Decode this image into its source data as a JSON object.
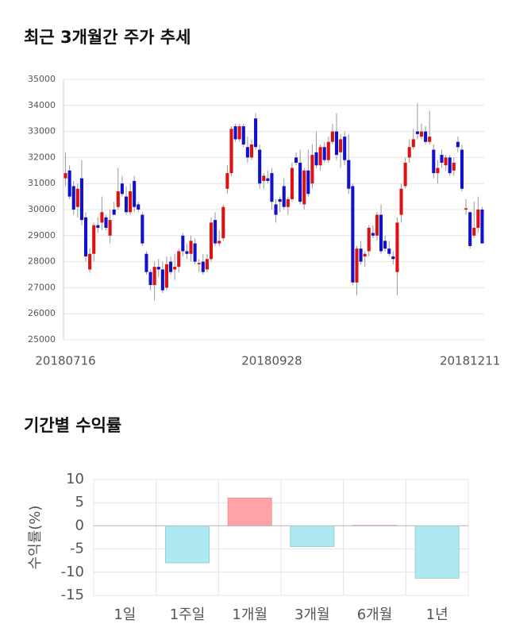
{
  "chart_data": [
    {
      "type": "candlestick",
      "title": "최근 3개월간 주가 추세",
      "up_color": "#dd1111",
      "down_color": "#1111cc",
      "ylim": [
        25000,
        35000
      ],
      "yticks": [
        25000,
        26000,
        27000,
        28000,
        29000,
        30000,
        31000,
        32000,
        33000,
        34000,
        35000
      ],
      "grid": true,
      "categories": [
        "20180716",
        null,
        null,
        null,
        null,
        null,
        null,
        null,
        null,
        null,
        null,
        null,
        null,
        null,
        null,
        null,
        null,
        null,
        null,
        null,
        null,
        null,
        null,
        null,
        null,
        null,
        null,
        null,
        null,
        null,
        null,
        null,
        null,
        null,
        null,
        null,
        null,
        null,
        null,
        null,
        null,
        null,
        null,
        null,
        null,
        null,
        null,
        null,
        null,
        null,
        null,
        "20180928",
        null,
        null,
        null,
        null,
        null,
        null,
        null,
        null,
        null,
        null,
        null,
        null,
        null,
        null,
        null,
        null,
        null,
        null,
        null,
        null,
        null,
        null,
        null,
        null,
        null,
        null,
        null,
        null,
        null,
        null,
        null,
        null,
        null,
        null,
        null,
        null,
        null,
        null,
        null,
        null,
        null,
        null,
        null,
        null,
        null,
        null,
        null,
        null,
        "20181211",
        null,
        null,
        null
      ],
      "ohlc": [
        [
          31200,
          32200,
          30900,
          31400
        ],
        [
          31500,
          31700,
          30400,
          30500
        ],
        [
          30900,
          31100,
          29800,
          30000
        ],
        [
          30100,
          31000,
          29700,
          30800
        ],
        [
          31200,
          31900,
          29400,
          29600
        ],
        [
          29700,
          29900,
          28000,
          28200
        ],
        [
          27700,
          28500,
          27600,
          28300
        ],
        [
          28300,
          29500,
          28000,
          29400
        ],
        [
          29400,
          29700,
          29100,
          29300
        ],
        [
          29500,
          30500,
          29200,
          29900
        ],
        [
          29700,
          29800,
          29200,
          29300
        ],
        [
          29000,
          30000,
          28700,
          29600
        ],
        [
          30000,
          30300,
          29800,
          29800
        ],
        [
          30100,
          31600,
          30000,
          30700
        ],
        [
          31000,
          31300,
          30500,
          30600
        ],
        [
          30500,
          30900,
          29800,
          29900
        ],
        [
          29900,
          31000,
          29800,
          30700
        ],
        [
          31100,
          31300,
          29900,
          30100
        ],
        [
          30200,
          30300,
          29900,
          30000
        ],
        [
          29800,
          29900,
          28600,
          28700
        ],
        [
          28300,
          28400,
          27500,
          27600
        ],
        [
          27600,
          27700,
          26900,
          27100
        ],
        [
          27100,
          28000,
          26500,
          27800
        ],
        [
          27800,
          28100,
          27400,
          27700
        ],
        [
          27700,
          28000,
          26800,
          26900
        ],
        [
          27000,
          28200,
          26900,
          27900
        ],
        [
          28000,
          28200,
          27500,
          27600
        ],
        [
          27700,
          28300,
          27300,
          27800
        ],
        [
          27800,
          28500,
          27600,
          28400
        ],
        [
          29000,
          29100,
          28200,
          28400
        ],
        [
          28400,
          28700,
          28100,
          28300
        ],
        [
          28300,
          29000,
          28000,
          28800
        ],
        [
          28700,
          28900,
          27900,
          28000
        ],
        [
          27900,
          28100,
          27600,
          27950
        ],
        [
          28000,
          28300,
          27500,
          27600
        ],
        [
          27700,
          28300,
          27600,
          28100
        ],
        [
          28100,
          29700,
          28000,
          29500
        ],
        [
          29600,
          29900,
          28600,
          28700
        ],
        [
          28700,
          29200,
          28600,
          28800
        ],
        [
          28900,
          30200,
          28800,
          30100
        ],
        [
          30800,
          31700,
          30600,
          31400
        ],
        [
          31400,
          33200,
          31300,
          33100
        ],
        [
          33200,
          33300,
          32600,
          32700
        ],
        [
          32700,
          33300,
          32600,
          33200
        ],
        [
          33200,
          33300,
          32400,
          32500
        ],
        [
          32400,
          32800,
          31800,
          32000
        ],
        [
          32000,
          32700,
          31900,
          32500
        ],
        [
          33500,
          33700,
          32300,
          32400
        ],
        [
          32300,
          32500,
          30800,
          31000
        ],
        [
          31100,
          31400,
          30800,
          31300
        ],
        [
          31200,
          31500,
          31000,
          31100
        ],
        [
          31400,
          31600,
          30000,
          30300
        ],
        [
          30200,
          30400,
          29500,
          29800
        ],
        [
          30400,
          30500,
          29900,
          30300
        ],
        [
          30900,
          31200,
          30000,
          30100
        ],
        [
          30100,
          30500,
          29800,
          30400
        ],
        [
          30400,
          31800,
          30300,
          31600
        ],
        [
          32000,
          32200,
          31700,
          31800
        ],
        [
          31800,
          32300,
          30200,
          30300
        ],
        [
          30200,
          31600,
          30000,
          31500
        ],
        [
          31500,
          32300,
          30500,
          30600
        ],
        [
          31000,
          32500,
          30800,
          32100
        ],
        [
          32200,
          33000,
          31600,
          31700
        ],
        [
          31700,
          32500,
          31500,
          32400
        ],
        [
          32400,
          32600,
          31800,
          31900
        ],
        [
          31900,
          32800,
          31800,
          32600
        ],
        [
          32600,
          33300,
          32500,
          33000
        ],
        [
          33000,
          33700,
          31900,
          32100
        ],
        [
          32200,
          32900,
          31600,
          32700
        ],
        [
          32800,
          33000,
          31700,
          31900
        ],
        [
          31900,
          32900,
          30600,
          30800
        ],
        [
          30900,
          31000,
          27100,
          27200
        ],
        [
          27200,
          28600,
          26700,
          28500
        ],
        [
          28500,
          28800,
          27900,
          28000
        ],
        [
          28200,
          28400,
          27800,
          28300
        ],
        [
          28400,
          29400,
          28200,
          29300
        ],
        [
          29100,
          29400,
          28900,
          29000
        ],
        [
          29000,
          29900,
          28800,
          29800
        ],
        [
          29800,
          30200,
          28300,
          28400
        ],
        [
          28800,
          29000,
          28400,
          28500
        ],
        [
          28500,
          28800,
          28200,
          28300
        ],
        [
          28200,
          28400,
          27900,
          28100
        ],
        [
          27600,
          29700,
          26700,
          29500
        ],
        [
          29800,
          31000,
          29500,
          30800
        ],
        [
          30900,
          32000,
          30800,
          31800
        ],
        [
          32000,
          32700,
          31800,
          32400
        ],
        [
          32400,
          33100,
          32300,
          32700
        ],
        [
          33000,
          34100,
          32700,
          32900
        ],
        [
          32800,
          33300,
          32700,
          33000
        ],
        [
          33000,
          33200,
          32500,
          32600
        ],
        [
          32600,
          33800,
          32500,
          32800
        ],
        [
          32300,
          32500,
          31200,
          31400
        ],
        [
          31400,
          31900,
          31000,
          31600
        ],
        [
          32100,
          32300,
          31600,
          31800
        ],
        [
          31700,
          32100,
          31500,
          32000
        ],
        [
          32000,
          32100,
          31300,
          31400
        ],
        [
          31500,
          32000,
          31300,
          31800
        ],
        [
          32600,
          32800,
          32200,
          32400
        ],
        [
          32300,
          32500,
          30700,
          30800
        ],
        [
          30000,
          30400,
          29800,
          30050
        ],
        [
          29900,
          29900,
          28500,
          28600
        ],
        [
          29000,
          30300,
          28900,
          29300
        ],
        [
          29300,
          30500,
          29100,
          30000
        ],
        [
          30000,
          30100,
          28700,
          28700
        ]
      ]
    },
    {
      "type": "bar",
      "title": "기간별 수익률",
      "ylabel": "수익률(%)",
      "categories": [
        "1일",
        "1주일",
        "1개월",
        "3개월",
        "6개월",
        "1년"
      ],
      "values": [
        0,
        -8,
        6,
        -4.5,
        0.1,
        -11.3
      ],
      "positive_color": "#ffa3a6",
      "negative_color": "#aee9f2",
      "ylim": [
        -15,
        10
      ],
      "yticks": [
        -15,
        -10,
        -5,
        0,
        5,
        10
      ],
      "grid": true
    }
  ]
}
